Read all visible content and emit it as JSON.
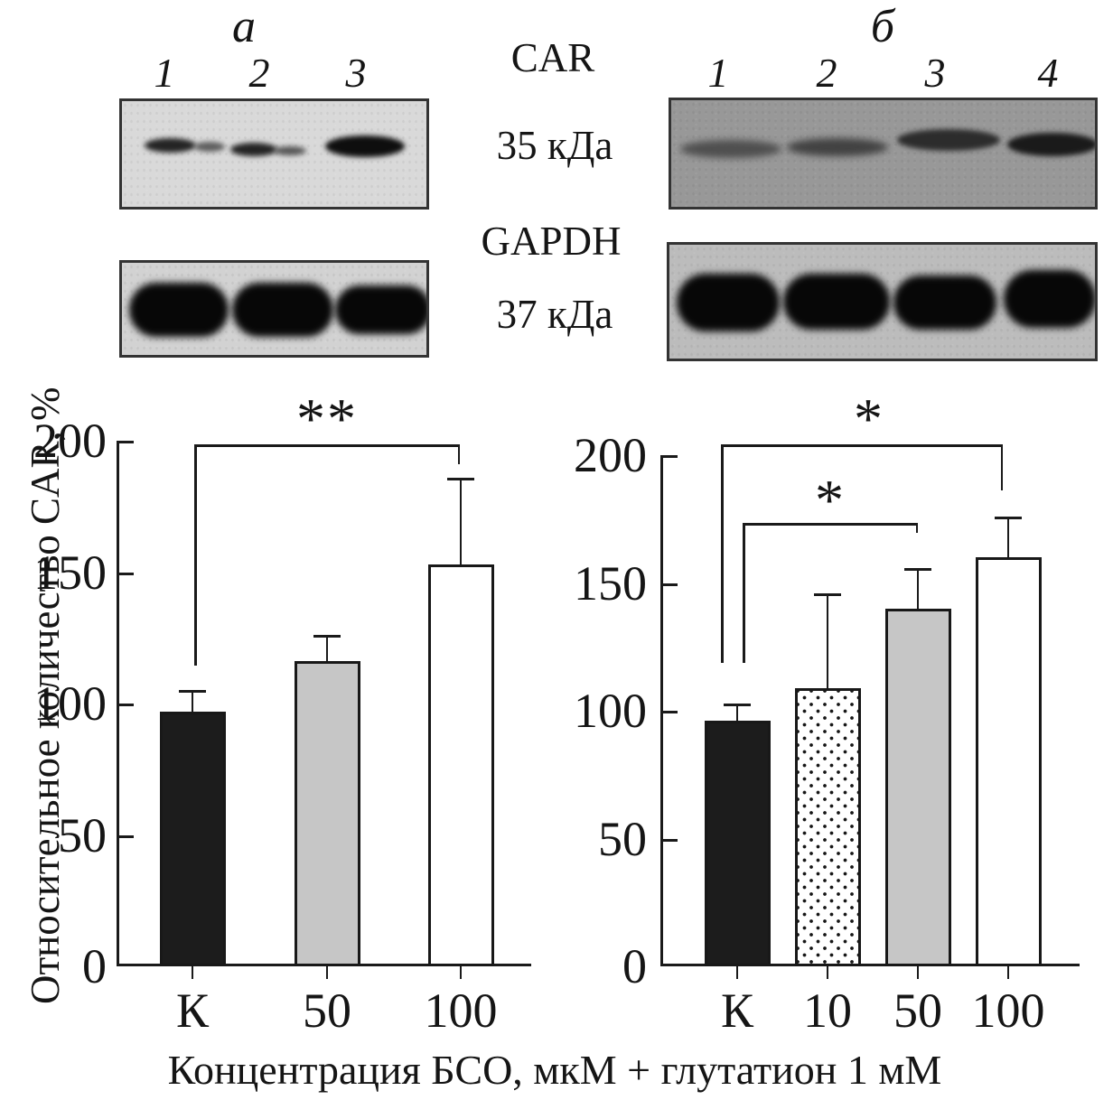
{
  "figure": {
    "panel_a_label": "а",
    "panel_b_label": "б",
    "blot_row_labels": {
      "car": "CAR",
      "car_kda": "35 кДа",
      "gapdh": "GAPDH",
      "gapdh_kda": "37 кДа"
    },
    "panel_a_lanes": [
      "1",
      "2",
      "3"
    ],
    "panel_b_lanes": [
      "1",
      "2",
      "3",
      "4"
    ]
  },
  "axis_labels": {
    "y": "Относительное количество CAR, %",
    "x": "Концентрация БСО, мкМ + глутатион 1 мМ"
  },
  "chart_data": [
    {
      "id": "chart-a",
      "type": "bar",
      "panel": "а",
      "title": "",
      "categories": [
        "К",
        "50",
        "100"
      ],
      "values": [
        97,
        116,
        153
      ],
      "errors_plus": [
        8,
        10,
        33
      ],
      "bar_styles": [
        "black",
        "gray",
        "white"
      ],
      "ylabel": "Относительное количество CAR, %",
      "xlabel": "Концентрация БСО, мкМ + глутатион 1 мМ",
      "ylim": [
        0,
        200
      ],
      "y_ticks": [
        0,
        50,
        100,
        150,
        200
      ],
      "grid": false,
      "legend": "none",
      "significance": [
        {
          "label": "**",
          "from": "К",
          "to": "100"
        }
      ]
    },
    {
      "id": "chart-b",
      "type": "bar",
      "panel": "б",
      "title": "",
      "categories": [
        "К",
        "10",
        "50",
        "100"
      ],
      "values": [
        96,
        109,
        140,
        160
      ],
      "errors_plus": [
        7,
        37,
        16,
        16
      ],
      "bar_styles": [
        "black",
        "dotted",
        "gray",
        "white"
      ],
      "ylabel": "Относительное количество CAR, %",
      "xlabel": "Концентрация БСО, мкМ + глутатион 1 мМ",
      "ylim": [
        0,
        200
      ],
      "y_ticks": [
        0,
        50,
        100,
        150,
        200
      ],
      "grid": false,
      "legend": "none",
      "significance": [
        {
          "label": "*",
          "from": "К",
          "to": "100"
        },
        {
          "label": "*",
          "from": "К",
          "to": "50"
        }
      ]
    }
  ]
}
